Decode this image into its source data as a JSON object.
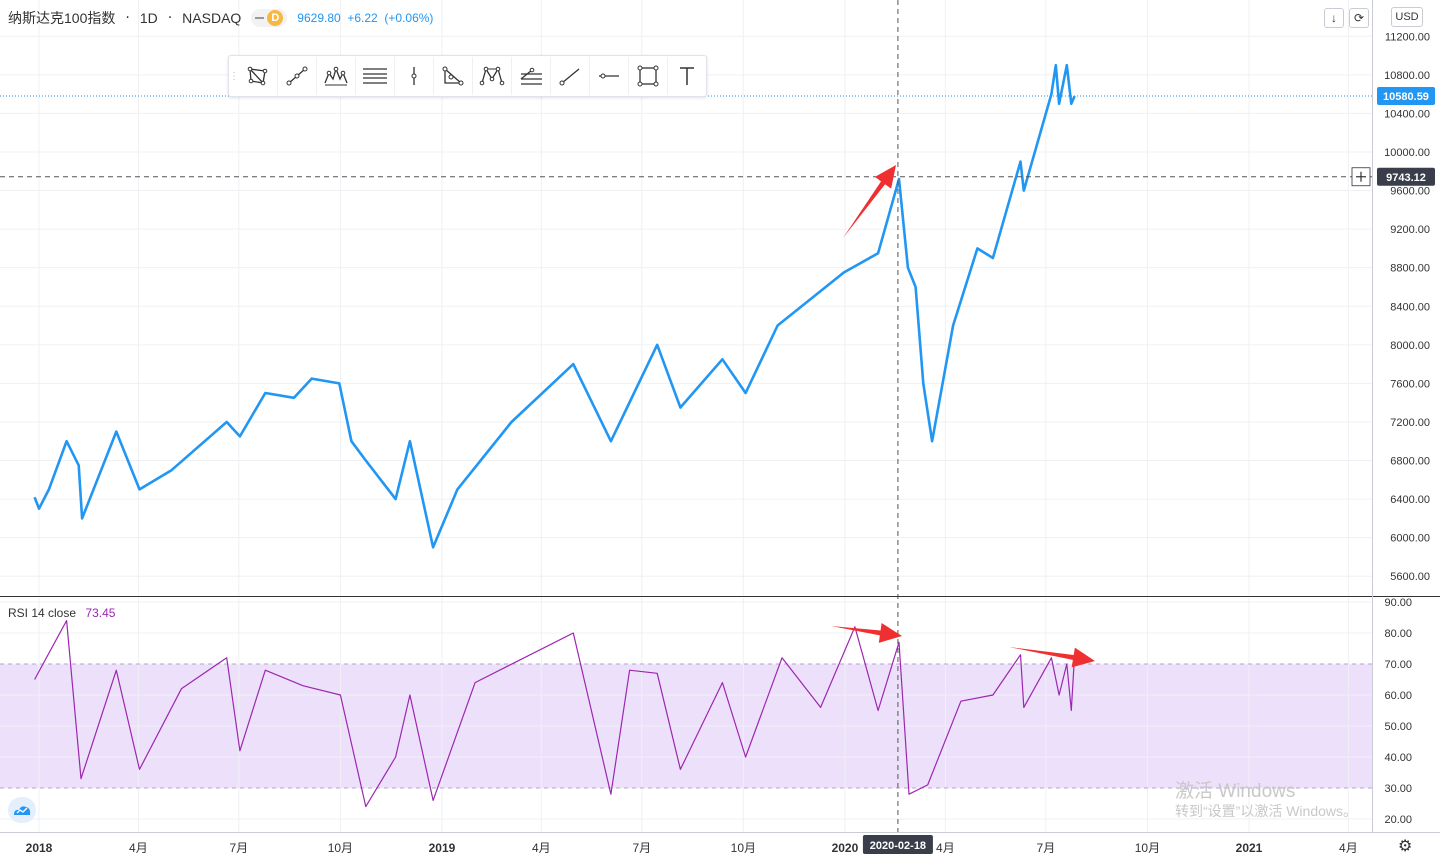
{
  "header": {
    "symbol": "纳斯达克100指数",
    "interval": "1D",
    "exchange": "NASDAQ",
    "badge": "D",
    "price": "9629.80",
    "change": "+6.22",
    "change_pct": "(+0.06%)"
  },
  "currency": "USD",
  "rsi": {
    "label": "RSI 14 close",
    "value": "73.45"
  },
  "crosshair": {
    "date": "2020-02-18",
    "price": "9743.12"
  },
  "last_price": "10580.59",
  "toolbar_tools": [
    "rect-pattern",
    "trend-line",
    "elliott-wave",
    "parallel-channel",
    "vertical-line",
    "triangle",
    "xabcd-pattern",
    "fib-retracement",
    "ray",
    "horizontal-line",
    "rectangle",
    "text"
  ],
  "watermark": {
    "line1": "激活 Windows",
    "line2": "转到“设置”以激活 Windows。"
  },
  "colors": {
    "price_line": "#2196f3",
    "rsi_line": "#9c27b0",
    "rsi_band": "#ede0fb",
    "arrow": "#f03030"
  },
  "chart_data": [
    {
      "type": "line",
      "x_ticks": [
        "2018",
        "4月",
        "7月",
        "10月",
        "2019",
        "4月",
        "7月",
        "10月",
        "2020",
        "4月",
        "7月",
        "10月",
        "2021",
        "4月"
      ],
      "y_ticks": [
        5600,
        6000,
        6400,
        6800,
        7200,
        7600,
        8000,
        8400,
        8800,
        9200,
        9600,
        10000,
        10400,
        10800,
        11200
      ],
      "ylim": [
        5400,
        11400
      ],
      "series": [
        {
          "values": [
            {
              "x": "2017-12-28",
              "y": 6420
            },
            {
              "x": "2018-01-01",
              "y": 6300
            },
            {
              "x": "2018-01-10",
              "y": 6500
            },
            {
              "x": "2018-01-26",
              "y": 7000
            },
            {
              "x": "2018-02-06",
              "y": 6750
            },
            {
              "x": "2018-02-09",
              "y": 6200
            },
            {
              "x": "2018-03-12",
              "y": 7100
            },
            {
              "x": "2018-04-02",
              "y": 6500
            },
            {
              "x": "2018-05-01",
              "y": 6700
            },
            {
              "x": "2018-06-20",
              "y": 7200
            },
            {
              "x": "2018-07-02",
              "y": 7050
            },
            {
              "x": "2018-07-25",
              "y": 7500
            },
            {
              "x": "2018-08-20",
              "y": 7450
            },
            {
              "x": "2018-09-05",
              "y": 7650
            },
            {
              "x": "2018-09-30",
              "y": 7600
            },
            {
              "x": "2018-10-11",
              "y": 7000
            },
            {
              "x": "2018-10-24",
              "y": 6800
            },
            {
              "x": "2018-11-20",
              "y": 6400
            },
            {
              "x": "2018-12-03",
              "y": 7000
            },
            {
              "x": "2018-12-24",
              "y": 5900
            },
            {
              "x": "2019-01-15",
              "y": 6500
            },
            {
              "x": "2019-03-05",
              "y": 7200
            },
            {
              "x": "2019-04-30",
              "y": 7800
            },
            {
              "x": "2019-06-03",
              "y": 7000
            },
            {
              "x": "2019-07-15",
              "y": 8000
            },
            {
              "x": "2019-08-05",
              "y": 7350
            },
            {
              "x": "2019-09-12",
              "y": 7850
            },
            {
              "x": "2019-10-03",
              "y": 7500
            },
            {
              "x": "2019-11-01",
              "y": 8200
            },
            {
              "x": "2019-12-31",
              "y": 8750
            },
            {
              "x": "2020-01-31",
              "y": 8950
            },
            {
              "x": "2020-02-19",
              "y": 9720
            },
            {
              "x": "2020-02-27",
              "y": 8800
            },
            {
              "x": "2020-03-05",
              "y": 8600
            },
            {
              "x": "2020-03-12",
              "y": 7600
            },
            {
              "x": "2020-03-20",
              "y": 7000
            },
            {
              "x": "2020-04-08",
              "y": 8200
            },
            {
              "x": "2020-04-30",
              "y": 9000
            },
            {
              "x": "2020-05-14",
              "y": 8900
            },
            {
              "x": "2020-06-08",
              "y": 9900
            },
            {
              "x": "2020-06-11",
              "y": 9600
            },
            {
              "x": "2020-07-06",
              "y": 10600
            },
            {
              "x": "2020-07-10",
              "y": 10900
            },
            {
              "x": "2020-07-13",
              "y": 10500
            },
            {
              "x": "2020-07-20",
              "y": 10900
            },
            {
              "x": "2020-07-24",
              "y": 10500
            },
            {
              "x": "2020-07-27",
              "y": 10580
            }
          ]
        }
      ]
    },
    {
      "type": "line",
      "x_ticks": [
        "2018",
        "4月",
        "7月",
        "10月",
        "2019",
        "4月",
        "7月",
        "10月",
        "2020",
        "4月",
        "7月",
        "10月",
        "2021",
        "4月"
      ],
      "y_ticks": [
        20,
        30,
        40,
        50,
        60,
        70,
        80,
        90
      ],
      "ylim": [
        17,
        92
      ],
      "band": [
        30,
        70
      ],
      "series": [
        {
          "values": [
            {
              "x": "2017-12-28",
              "y": 65
            },
            {
              "x": "2018-01-26",
              "y": 84
            },
            {
              "x": "2018-02-08",
              "y": 33
            },
            {
              "x": "2018-03-12",
              "y": 68
            },
            {
              "x": "2018-04-02",
              "y": 36
            },
            {
              "x": "2018-05-10",
              "y": 62
            },
            {
              "x": "2018-06-20",
              "y": 72
            },
            {
              "x": "2018-07-02",
              "y": 42
            },
            {
              "x": "2018-07-25",
              "y": 68
            },
            {
              "x": "2018-08-28",
              "y": 63
            },
            {
              "x": "2018-10-01",
              "y": 60
            },
            {
              "x": "2018-10-24",
              "y": 24
            },
            {
              "x": "2018-11-20",
              "y": 40
            },
            {
              "x": "2018-12-03",
              "y": 60
            },
            {
              "x": "2018-12-24",
              "y": 26
            },
            {
              "x": "2019-01-31",
              "y": 64
            },
            {
              "x": "2019-04-30",
              "y": 80
            },
            {
              "x": "2019-06-03",
              "y": 28
            },
            {
              "x": "2019-06-20",
              "y": 68
            },
            {
              "x": "2019-07-15",
              "y": 67
            },
            {
              "x": "2019-08-05",
              "y": 36
            },
            {
              "x": "2019-09-12",
              "y": 64
            },
            {
              "x": "2019-10-03",
              "y": 40
            },
            {
              "x": "2019-11-05",
              "y": 72
            },
            {
              "x": "2019-12-10",
              "y": 56
            },
            {
              "x": "2020-01-10",
              "y": 82
            },
            {
              "x": "2020-01-31",
              "y": 55
            },
            {
              "x": "2020-02-19",
              "y": 77
            },
            {
              "x": "2020-02-28",
              "y": 28
            },
            {
              "x": "2020-03-16",
              "y": 31
            },
            {
              "x": "2020-04-15",
              "y": 58
            },
            {
              "x": "2020-05-14",
              "y": 60
            },
            {
              "x": "2020-06-08",
              "y": 73
            },
            {
              "x": "2020-06-11",
              "y": 56
            },
            {
              "x": "2020-07-06",
              "y": 72
            },
            {
              "x": "2020-07-13",
              "y": 60
            },
            {
              "x": "2020-07-20",
              "y": 70
            },
            {
              "x": "2020-07-24",
              "y": 55
            },
            {
              "x": "2020-07-27",
              "y": 73
            }
          ]
        }
      ]
    }
  ]
}
